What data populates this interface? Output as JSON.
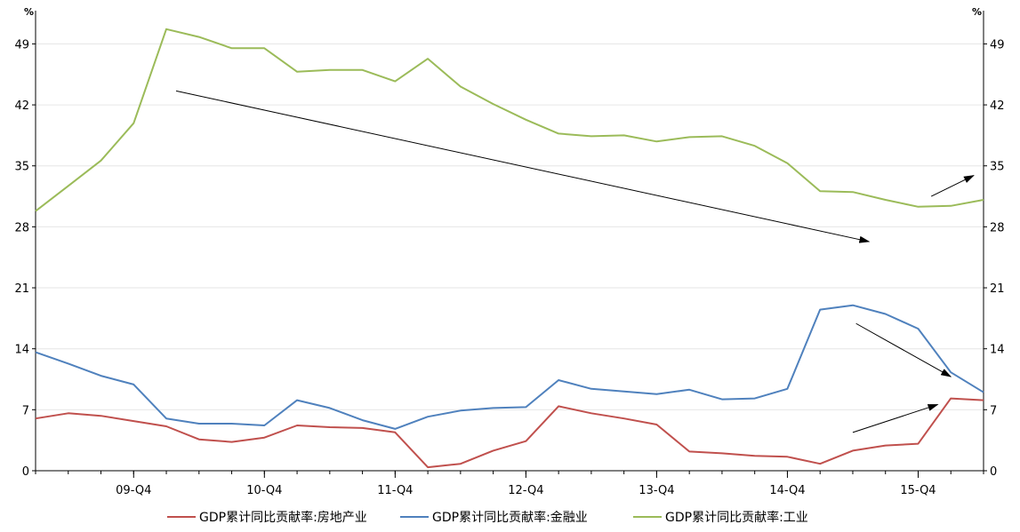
{
  "chart_data": {
    "type": "line",
    "unit_left": "%",
    "unit_right": "%",
    "yticks": [
      0,
      7,
      14,
      21,
      28,
      35,
      42,
      49
    ],
    "ylim": [
      0,
      52
    ],
    "x_tick_labels": [
      "09-Q4",
      "10-Q4",
      "11-Q4",
      "12-Q4",
      "13-Q4",
      "14-Q4",
      "15-Q4"
    ],
    "x_tick_indices": [
      3,
      7,
      11,
      15,
      19,
      23,
      27
    ],
    "grid": true,
    "legend_position": "bottom",
    "colors": {
      "series1": "#c0504d",
      "series2": "#4f81bd",
      "series3": "#9bbb59",
      "arrow": "#000000",
      "grid": "#e6e6e6",
      "axis": "#000000"
    },
    "series": [
      {
        "name": "GDP累计同比贡献率:房地产业",
        "color": "#c0504d",
        "values": [
          6.0,
          6.6,
          6.3,
          5.7,
          5.1,
          3.6,
          3.3,
          3.8,
          5.2,
          5.0,
          4.9,
          4.4,
          0.4,
          0.8,
          2.3,
          3.4,
          7.4,
          6.6,
          6.0,
          5.3,
          2.2,
          2.0,
          1.7,
          1.6,
          0.8,
          2.3,
          2.9,
          3.1,
          8.3,
          8.1
        ]
      },
      {
        "name": "GDP累计同比贡献率:金融业",
        "color": "#4f81bd",
        "values": [
          13.6,
          12.3,
          10.9,
          9.9,
          6.0,
          5.4,
          5.4,
          5.2,
          8.1,
          7.2,
          5.8,
          4.8,
          6.2,
          6.9,
          7.2,
          7.3,
          10.4,
          9.4,
          9.1,
          8.8,
          9.3,
          8.2,
          8.3,
          9.4,
          18.5,
          19.0,
          18.0,
          16.3,
          11.3,
          9.0
        ]
      },
      {
        "name": "GDP累计同比贡献率:工业",
        "color": "#9bbb59",
        "values": [
          29.8,
          32.7,
          35.6,
          39.9,
          50.7,
          49.8,
          48.5,
          48.5,
          45.8,
          46.0,
          46.0,
          44.7,
          47.3,
          44.1,
          42.1,
          40.3,
          38.7,
          38.4,
          38.5,
          37.8,
          38.3,
          38.4,
          37.3,
          35.3,
          32.1,
          32.0,
          31.1,
          30.3,
          30.4,
          31.1
        ]
      }
    ],
    "annotation_arrows": [
      {
        "from": [
          4.3,
          43.6
        ],
        "to": [
          25.5,
          26.3
        ]
      },
      {
        "from": [
          25.1,
          16.9
        ],
        "to": [
          28.0,
          10.8
        ]
      },
      {
        "from": [
          25.0,
          4.4
        ],
        "to": [
          27.6,
          7.6
        ]
      },
      {
        "from": [
          27.4,
          31.5
        ],
        "to": [
          28.7,
          33.9
        ]
      }
    ]
  }
}
